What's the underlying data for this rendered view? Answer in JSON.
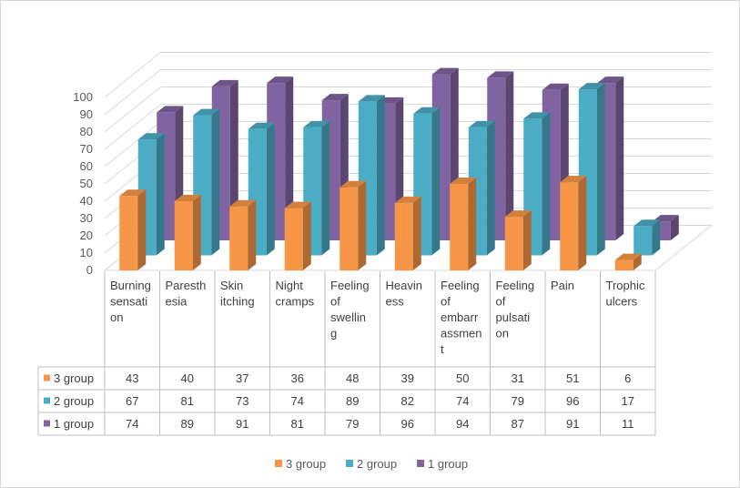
{
  "chart_data": {
    "type": "bar",
    "variant": "3d-clustered-column-with-data-table",
    "title": "",
    "xlabel": "",
    "ylabel": "",
    "ylim": [
      0,
      100
    ],
    "yticks": [
      0,
      10,
      20,
      30,
      40,
      50,
      60,
      70,
      80,
      90,
      100
    ],
    "grid": true,
    "legend_position": "bottom",
    "categories": [
      [
        "Burning",
        "sensati",
        "on"
      ],
      [
        "Paresth",
        "esia"
      ],
      [
        "Skin",
        "itching"
      ],
      [
        "Night",
        "cramps"
      ],
      [
        "Feeling",
        "of",
        "swellin",
        "g"
      ],
      [
        "Heavin",
        "ess"
      ],
      [
        "Feeling",
        "of",
        "embarr",
        "assmen",
        "t"
      ],
      [
        "Feeling",
        "of",
        "pulsati",
        "on"
      ],
      [
        "Pain"
      ],
      [
        "Trophic",
        "ulcers"
      ]
    ],
    "series": [
      {
        "name": "3 group",
        "color": "#f79646",
        "values": [
          43,
          40,
          37,
          36,
          48,
          39,
          50,
          31,
          51,
          6
        ]
      },
      {
        "name": "2 group",
        "color": "#4bacc6",
        "values": [
          67,
          81,
          73,
          74,
          89,
          82,
          74,
          79,
          96,
          17
        ]
      },
      {
        "name": "1 group",
        "color": "#8064a2",
        "values": [
          74,
          89,
          91,
          81,
          79,
          96,
          94,
          87,
          91,
          11
        ]
      }
    ]
  }
}
